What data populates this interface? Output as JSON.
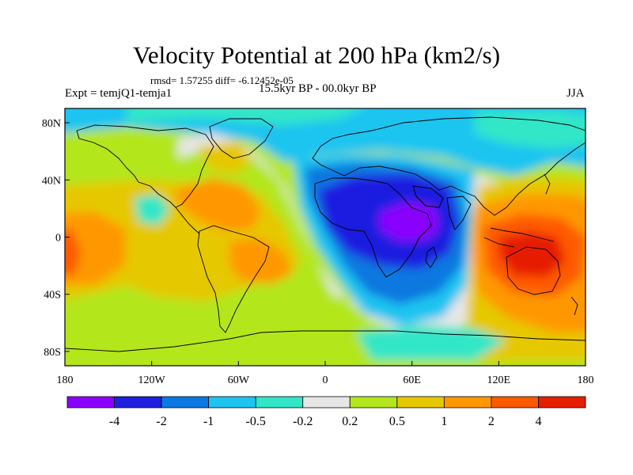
{
  "title": "Velocity Potential at 200 hPa (km2/s)",
  "stats_line": "rmsd= 1.57255 diff= -6.12452e-05",
  "left_label": "Expt = temjQ1-temja1",
  "center_label": "15.5kyr BP - 00.0kyr BP",
  "right_label": "JJA",
  "map": {
    "lon_range": [
      -180,
      180
    ],
    "lat_range": [
      -90,
      90
    ],
    "x_ticks": [
      {
        "value": -180,
        "label": "180"
      },
      {
        "value": -120,
        "label": "120W"
      },
      {
        "value": -60,
        "label": "60W"
      },
      {
        "value": 0,
        "label": "0"
      },
      {
        "value": 60,
        "label": "60E"
      },
      {
        "value": 120,
        "label": "120E"
      },
      {
        "value": 180,
        "label": "180"
      }
    ],
    "y_ticks": [
      {
        "value": 80,
        "label": "80N"
      },
      {
        "value": 40,
        "label": "40N"
      },
      {
        "value": 0,
        "label": "0"
      },
      {
        "value": -40,
        "label": "40S"
      },
      {
        "value": -80,
        "label": "80S"
      }
    ]
  },
  "colorbar": {
    "colors": [
      "#8a00ff",
      "#1f1fe0",
      "#0a78e0",
      "#1ec4f0",
      "#32e6c8",
      "#e6e6e6",
      "#b4e61e",
      "#e6c800",
      "#ff9800",
      "#ff5a00",
      "#e61e00"
    ],
    "labels": [
      "-4",
      "-2",
      "-1",
      "-0.5",
      "-0.2",
      "0.2",
      "0.5",
      "1",
      "2",
      "4"
    ]
  }
}
